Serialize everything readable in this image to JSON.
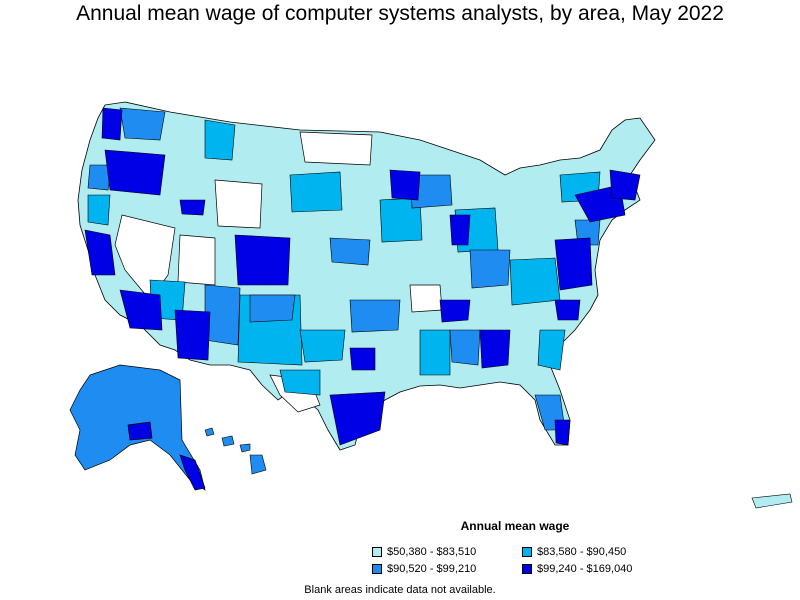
{
  "title": "Annual mean wage of computer systems analysts, by area, May 2022",
  "legend": {
    "title": "Annual mean wage",
    "items": [
      {
        "label": "$50,380 - $83,510",
        "color": "#b0ecf0"
      },
      {
        "label": "$83,580 - $90,450",
        "color": "#00b4f0"
      },
      {
        "label": "$90,520 - $99,210",
        "color": "#1e8cf0"
      },
      {
        "label": "$99,240 - $169,040",
        "color": "#0000e6"
      }
    ]
  },
  "note": "Blank areas indicate data not available.",
  "colors": {
    "outline": "#000000",
    "no_data": "#ffffff",
    "tier1": "#b0ecf0",
    "tier2": "#00b4f0",
    "tier3": "#1e8cf0",
    "tier4": "#0000e6"
  }
}
